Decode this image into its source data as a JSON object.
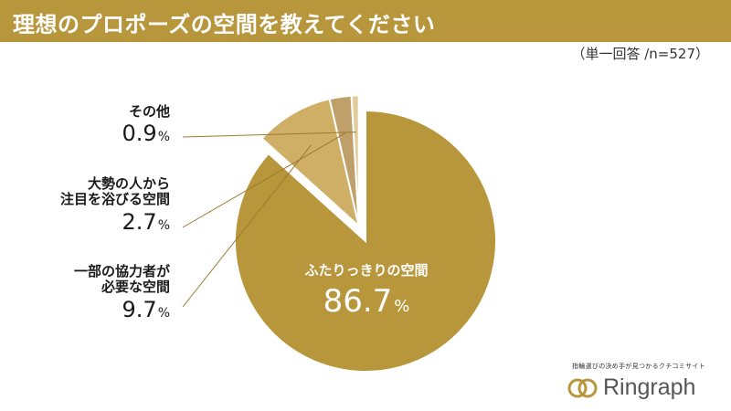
{
  "header": {
    "title": "理想のプロポーズの空間を教えてください",
    "note": "（単一回答 /n=527）"
  },
  "colors": {
    "header_bg": "#b8963c",
    "main": "#b8963c",
    "help": "#cfae66",
    "crowd": "#bfa06a",
    "other": "#e2cc9c",
    "leader": "#9a7a2e"
  },
  "chart_data": {
    "type": "pie",
    "title": "理想のプロポーズの空間を教えてください",
    "note": "（単一回答 /n=527）",
    "start": "12 o'clock",
    "direction": "clockwise",
    "exploded": "all slices except the largest, pulled out together",
    "slices": [
      {
        "label": "ふたりっきりの空間",
        "value": 86.7,
        "value_text": "86.7",
        "color": "#b8963c"
      },
      {
        "label": "一部の協力者が必要な空間",
        "label_lines": [
          "一部の協力者が",
          "必要な空間"
        ],
        "value": 9.7,
        "value_text": "9.7",
        "color": "#cfae66"
      },
      {
        "label": "大勢の人から注目を浴びる空間",
        "label_lines": [
          "大勢の人から",
          "注目を浴びる空間"
        ],
        "value": 2.7,
        "value_text": "2.7",
        "color": "#bfa06a"
      },
      {
        "label": "その他",
        "label_lines": [
          "その他"
        ],
        "value": 0.9,
        "value_text": "0.9",
        "color": "#e2cc9c"
      }
    ],
    "unit": "%"
  },
  "brand": {
    "tagline": "指輪選びの決め手が見つかるクチコミサイト",
    "name": "Ringraph",
    "logo_icon": "double-ring-logo"
  }
}
